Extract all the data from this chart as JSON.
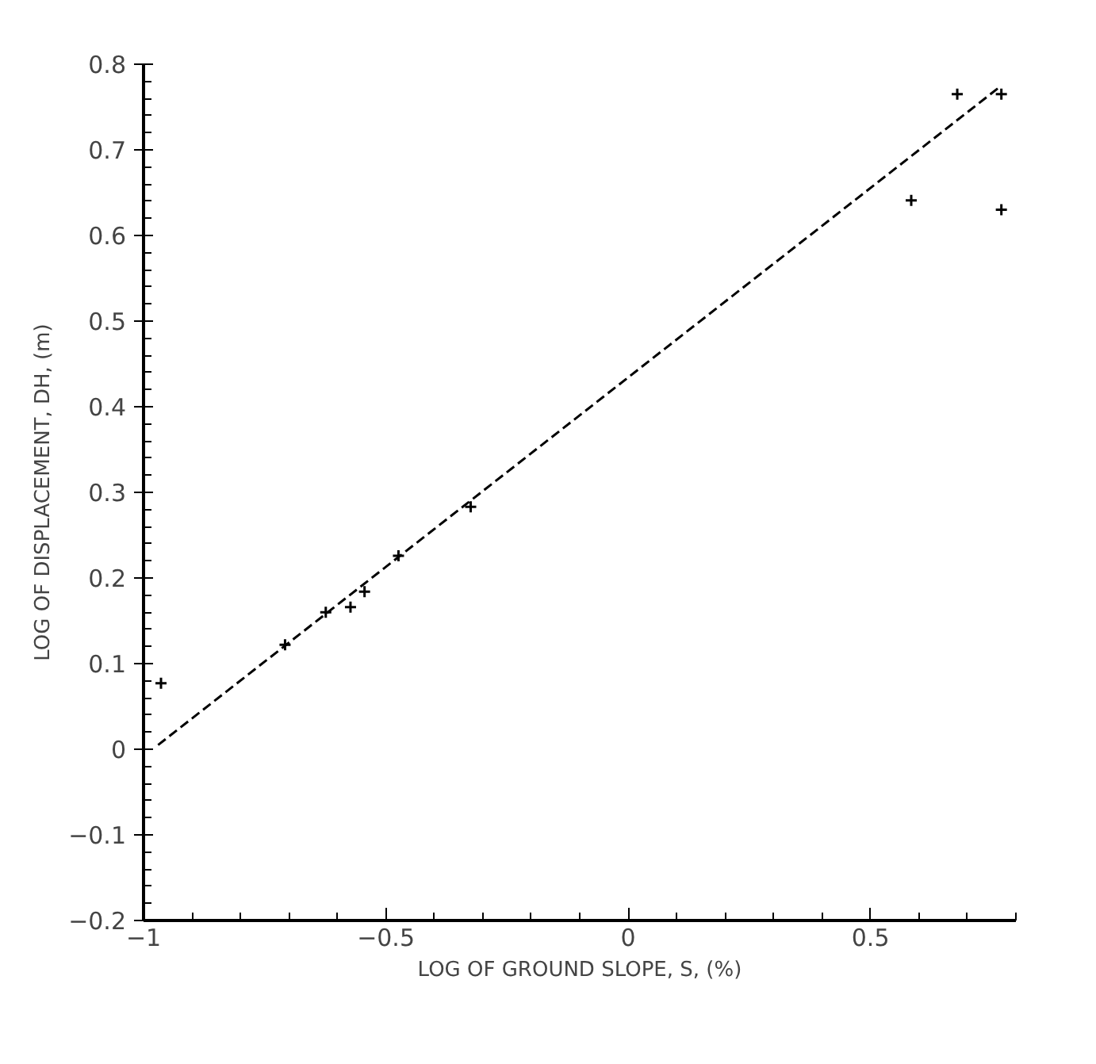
{
  "chart_data": {
    "type": "scatter",
    "xlabel": "LOG OF GROUND SLOPE, S, (%)",
    "ylabel": "LOG OF DISPLACEMENT, DH, (m)",
    "xlim": [
      -1,
      0.8
    ],
    "ylim": [
      -0.2,
      0.8
    ],
    "xticks": [
      {
        "value": -1,
        "label": "−1"
      },
      {
        "value": -0.5,
        "label": "−0.5"
      },
      0,
      0.5
    ],
    "yticks": [
      {
        "value": -0.2,
        "label": "−0.2"
      },
      {
        "value": -0.1,
        "label": "−0.1"
      },
      0,
      0.1,
      0.2,
      0.3,
      0.4,
      0.5,
      0.6,
      0.7,
      0.8
    ],
    "grid": false,
    "series": [
      {
        "marker": "cross",
        "color": "#000000",
        "x": [
          -0.964,
          -0.708,
          -0.624,
          -0.573,
          -0.544,
          -0.474,
          -0.325,
          0.584,
          0.679,
          0.77,
          0.77
        ],
        "values": [
          0.077,
          0.122,
          0.16,
          0.166,
          0.184,
          0.226,
          0.283,
          0.641,
          0.765,
          0.63,
          0.765
        ]
      },
      {
        "type": "line",
        "color": "#000000",
        "line_style": "dashed",
        "x": [
          -0.97,
          0.77
        ],
        "values": [
          0.005,
          0.775
        ]
      }
    ]
  }
}
